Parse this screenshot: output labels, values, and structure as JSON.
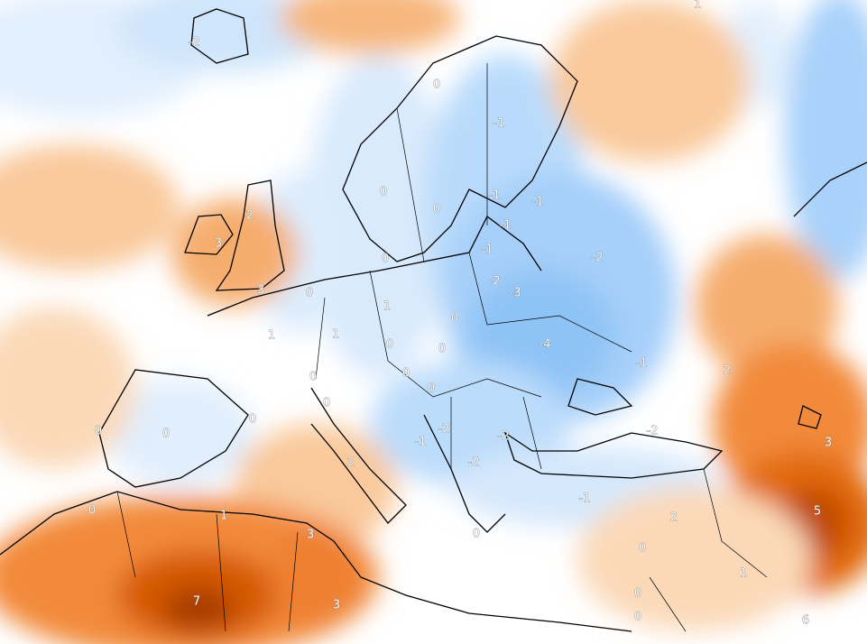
{
  "contour_labels": [
    "-2",
    "1",
    "0",
    "-1",
    "0",
    "-1",
    "-1",
    "0",
    "2",
    "-1",
    "3",
    "-1",
    "-2",
    "0",
    "-2",
    "3",
    "-3",
    "0",
    "1",
    "0",
    "1",
    "1",
    "-4",
    "0",
    "0",
    "-1",
    "2",
    "0",
    "0",
    "0",
    "0",
    "0",
    "-2",
    "-2",
    "0",
    "0",
    "-1",
    "-2",
    "3",
    "2",
    "-2",
    "-1",
    "0",
    "5",
    "1",
    "2",
    "3",
    "0",
    "0",
    "1",
    "0",
    "7",
    "3",
    "0",
    "6"
  ]
}
